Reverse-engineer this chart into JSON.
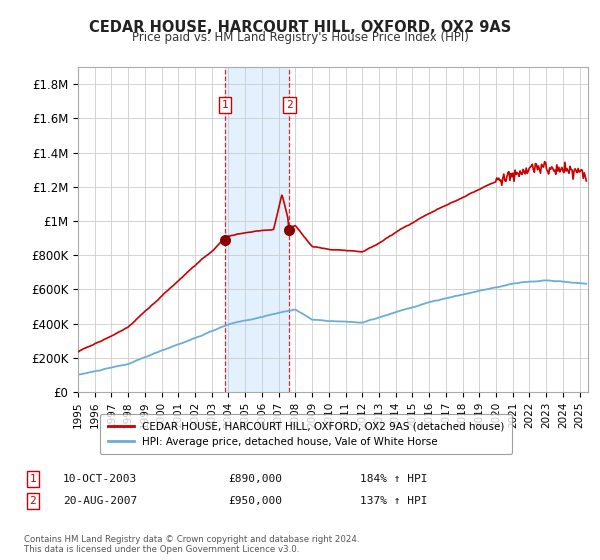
{
  "title": "CEDAR HOUSE, HARCOURT HILL, OXFORD, OX2 9AS",
  "subtitle": "Price paid vs. HM Land Registry's House Price Index (HPI)",
  "hpi_color": "#6aaed6",
  "price_color": "#cc0000",
  "marker_color": "#8b0000",
  "background_color": "#ffffff",
  "grid_color": "#cccccc",
  "shade_color": "#ddeeff",
  "ylim": [
    0,
    1900000
  ],
  "yticks": [
    0,
    200000,
    400000,
    600000,
    800000,
    1000000,
    1200000,
    1400000,
    1600000,
    1800000
  ],
  "ytick_labels": [
    "£0",
    "£200K",
    "£400K",
    "£600K",
    "£800K",
    "£1M",
    "£1.2M",
    "£1.4M",
    "£1.6M",
    "£1.8M"
  ],
  "sale1": {
    "date_num": 2003.78,
    "price": 890000,
    "label": "1",
    "date_str": "10-OCT-2003",
    "hpi_pct": "184%"
  },
  "sale2": {
    "date_num": 2007.64,
    "price": 950000,
    "label": "2",
    "date_str": "20-AUG-2007",
    "hpi_pct": "137%"
  },
  "legend1_label": "CEDAR HOUSE, HARCOURT HILL, OXFORD, OX2 9AS (detached house)",
  "legend2_label": "HPI: Average price, detached house, Vale of White Horse",
  "footnote": "Contains HM Land Registry data © Crown copyright and database right 2024.\nThis data is licensed under the Open Government Licence v3.0.",
  "xlim_start": 1995.0,
  "xlim_end": 2025.5,
  "xticks": [
    1995,
    1996,
    1997,
    1998,
    1999,
    2000,
    2001,
    2002,
    2003,
    2004,
    2005,
    2006,
    2007,
    2008,
    2009,
    2010,
    2011,
    2012,
    2013,
    2014,
    2015,
    2016,
    2017,
    2018,
    2019,
    2020,
    2021,
    2022,
    2023,
    2024,
    2025
  ]
}
